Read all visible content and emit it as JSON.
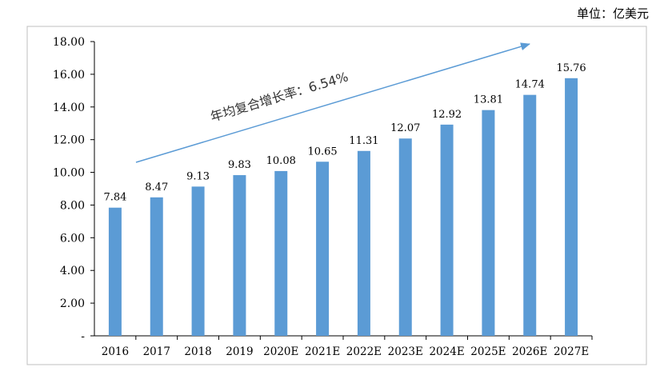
{
  "unit_label": "单位：亿美元",
  "chart_data": {
    "type": "bar",
    "categories": [
      "2016",
      "2017",
      "2018",
      "2019",
      "2020E",
      "2021E",
      "2022E",
      "2023E",
      "2024E",
      "2025E",
      "2026E",
      "2027E"
    ],
    "values": [
      7.84,
      8.47,
      9.13,
      9.83,
      10.08,
      10.65,
      11.31,
      12.07,
      12.92,
      13.81,
      14.74,
      15.76
    ],
    "value_labels": [
      "7.84",
      "8.47",
      "9.13",
      "9.83",
      "10.08",
      "10.65",
      "11.31",
      "12.07",
      "12.92",
      "13.81",
      "14.74",
      "15.76"
    ],
    "ylim": [
      0,
      18
    ],
    "y_ticks": [
      "-",
      "2.00",
      "4.00",
      "6.00",
      "8.00",
      "10.00",
      "12.00",
      "14.00",
      "16.00",
      "18.00"
    ],
    "bar_color": "#5B9BD5",
    "arrow_color": "#5B9BD5",
    "annotation": "年均复合增长率：6.54%",
    "grid": false,
    "title": "",
    "xlabel": "",
    "ylabel": ""
  }
}
